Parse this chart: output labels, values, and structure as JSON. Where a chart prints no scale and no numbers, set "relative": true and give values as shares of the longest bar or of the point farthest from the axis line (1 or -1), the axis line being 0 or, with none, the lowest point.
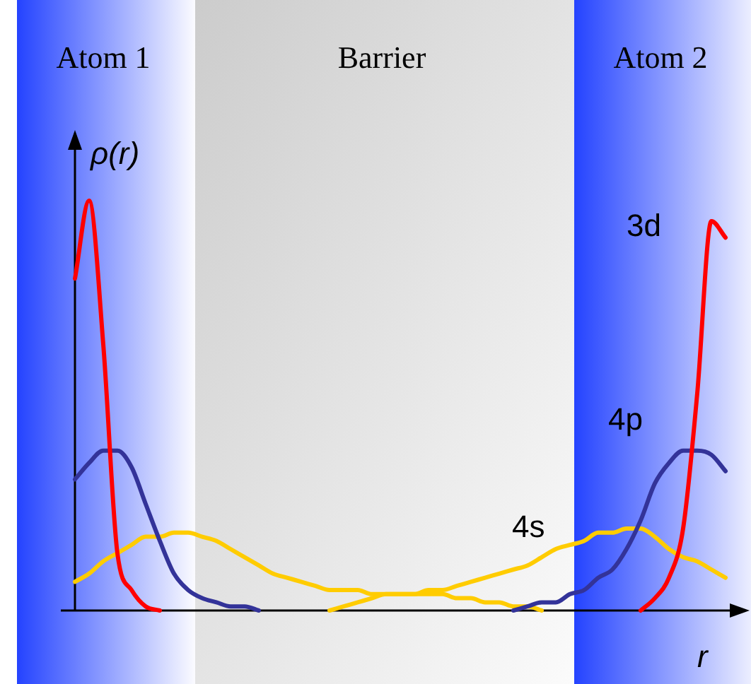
{
  "chart_data": {
    "type": "line",
    "relative": true,
    "xlabel": "r",
    "ylabel": "ρ(r)",
    "legend": false,
    "annotations": [
      "Atom 1",
      "Barrier",
      "Atom 2"
    ],
    "categories": [
      null,
      null,
      null,
      null,
      null,
      null,
      null,
      null,
      null,
      null,
      null,
      null,
      null,
      null,
      null,
      null,
      null,
      null,
      null,
      null,
      null,
      null,
      null,
      null,
      null,
      null,
      null,
      null,
      null,
      null,
      null,
      null,
      null,
      null,
      null,
      null,
      null,
      null,
      null,
      null,
      null,
      null,
      null,
      null,
      null,
      null,
      null,
      null
    ],
    "series": [
      {
        "name": "3d",
        "color": "#ff0000",
        "values": [
          0.81,
          1,
          0.65,
          0.14,
          0.05,
          0.01,
          0,
          null,
          null,
          null,
          null,
          null,
          null,
          null,
          null,
          null,
          null,
          null,
          null,
          null,
          null,
          null,
          null,
          null,
          null,
          null,
          null,
          null,
          null,
          null,
          null,
          null,
          null,
          null,
          null,
          null,
          null,
          null,
          null,
          null,
          0,
          0.03,
          0.08,
          0.2,
          0.53,
          0.95,
          0.91,
          null
        ]
      },
      {
        "name": "4p",
        "color": "#333399",
        "values": [
          0.32,
          0.36,
          0.39,
          0.39,
          0.35,
          0.26,
          0.17,
          0.09,
          0.05,
          0.03,
          0.02,
          0.01,
          0.01,
          0,
          null,
          null,
          null,
          null,
          null,
          null,
          null,
          null,
          null,
          null,
          null,
          null,
          null,
          null,
          null,
          null,
          null,
          0,
          0.01,
          0.02,
          0.02,
          0.04,
          0.05,
          0.08,
          0.1,
          0.15,
          0.22,
          0.31,
          0.36,
          0.39,
          0.39,
          0.38,
          0.34,
          null
        ]
      },
      {
        "name": "4s",
        "color": "#ffcc00",
        "values": [
          null,
          null,
          null,
          null,
          null,
          null,
          null,
          null,
          null,
          null,
          null,
          null,
          null,
          null,
          null,
          null,
          null,
          null,
          0,
          0.01,
          0.02,
          0.03,
          0.04,
          0.04,
          0.04,
          0.05,
          0.05,
          0.06,
          0.07,
          0.08,
          0.09,
          0.1,
          0.11,
          0.13,
          0.15,
          0.16,
          0.17,
          0.19,
          0.19,
          0.2,
          0.2,
          0.18,
          0.15,
          0.13,
          0.12,
          0.1,
          0.08,
          null
        ]
      },
      {
        "color": "#ffcc00",
        "values": [
          0.07,
          0.09,
          0.12,
          0.14,
          0.16,
          0.18,
          0.18,
          0.19,
          0.19,
          0.18,
          0.17,
          0.15,
          0.13,
          0.11,
          0.09,
          0.08,
          0.07,
          0.06,
          0.05,
          0.05,
          0.05,
          0.04,
          0.04,
          0.04,
          0.04,
          0.04,
          0.04,
          0.03,
          0.03,
          0.02,
          0.02,
          0.01,
          0.01,
          0,
          null,
          null,
          null,
          null,
          null,
          null,
          null,
          null,
          null,
          null,
          null,
          null,
          null,
          null
        ]
      }
    ]
  }
}
